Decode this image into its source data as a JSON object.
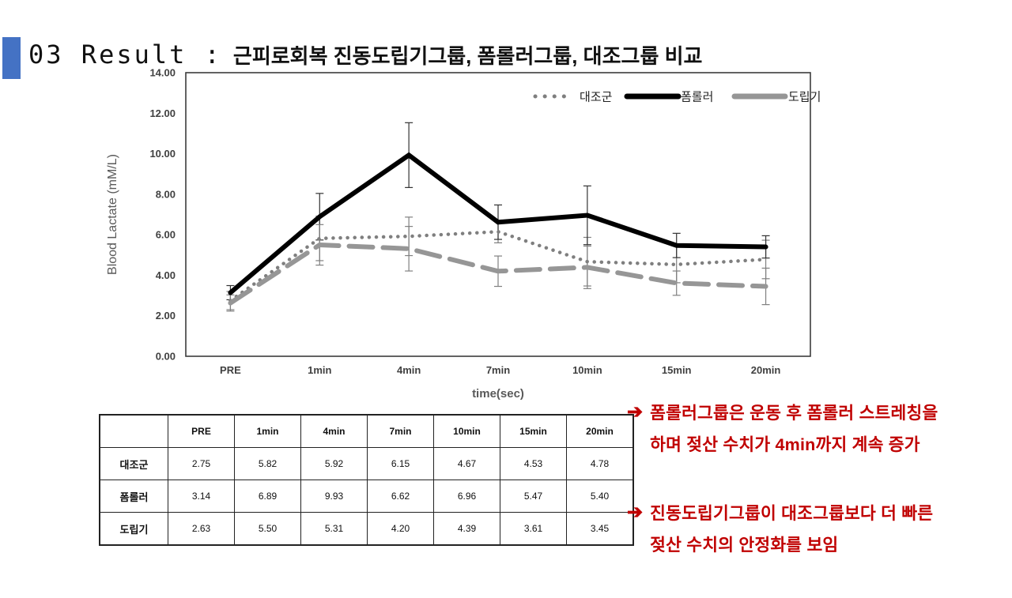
{
  "slide": {
    "title_prefix": "03 Result :",
    "title_main": "근피로회복 진동도립기그룹, 폼롤러그룹, 대조그룹 비교",
    "accent_color": "#4472C4"
  },
  "chart_data": {
    "type": "line",
    "title": "",
    "ylabel": "Blood Lactate (mM/L)",
    "xlabel": "time(sec)",
    "categories": [
      "PRE",
      "1min",
      "4min",
      "7min",
      "10min",
      "15min",
      "20min"
    ],
    "ylim": [
      0,
      14
    ],
    "ytick_step": 2,
    "ytick_format": "0.00",
    "grid": false,
    "legend_position": "top-right-inside",
    "series": [
      {
        "name": "대조군",
        "style": "dotted",
        "color": "#7F7F7F",
        "values": [
          2.75,
          5.82,
          5.92,
          6.15,
          4.67,
          4.53,
          4.78
        ],
        "error": [
          0.45,
          1.1,
          0.95,
          0.55,
          1.2,
          0.9,
          0.95
        ]
      },
      {
        "name": "폼롤러",
        "style": "solid",
        "color": "#000000",
        "values": [
          3.14,
          6.89,
          9.93,
          6.62,
          6.96,
          5.47,
          5.4
        ],
        "error": [
          0.35,
          1.15,
          1.6,
          0.85,
          1.45,
          0.6,
          0.55
        ]
      },
      {
        "name": "도립기",
        "style": "dashed",
        "color": "#969696",
        "values": [
          2.63,
          5.5,
          5.31,
          4.2,
          4.39,
          3.61,
          3.45
        ],
        "error": [
          0.4,
          1.0,
          1.1,
          0.75,
          1.05,
          0.6,
          0.9
        ]
      }
    ]
  },
  "table": {
    "columns": [
      "",
      "PRE",
      "1min",
      "4min",
      "7min",
      "10min",
      "15min",
      "20min"
    ],
    "rows": [
      {
        "label": "대조군",
        "values": [
          "2.75",
          "5.82",
          "5.92",
          "6.15",
          "4.67",
          "4.53",
          "4.78"
        ]
      },
      {
        "label": "폼롤러",
        "values": [
          "3.14",
          "6.89",
          "9.93",
          "6.62",
          "6.96",
          "5.47",
          "5.40"
        ]
      },
      {
        "label": "도립기",
        "values": [
          "2.63",
          "5.50",
          "5.31",
          "4.20",
          "4.39",
          "3.61",
          "3.45"
        ]
      }
    ]
  },
  "notes": {
    "color": "#C00000",
    "items": [
      {
        "arrow": "➔",
        "line1": "폼롤러그룹은 운동 후 폼롤러 스트레칭을",
        "line2": "하며 젖산 수치가 4min까지 계속 증가"
      },
      {
        "arrow": "➔",
        "line1": "진동도립기그룹이 대조그룹보다 더 빠른",
        "line2": "젖산 수치의 안정화를 보임"
      }
    ]
  }
}
